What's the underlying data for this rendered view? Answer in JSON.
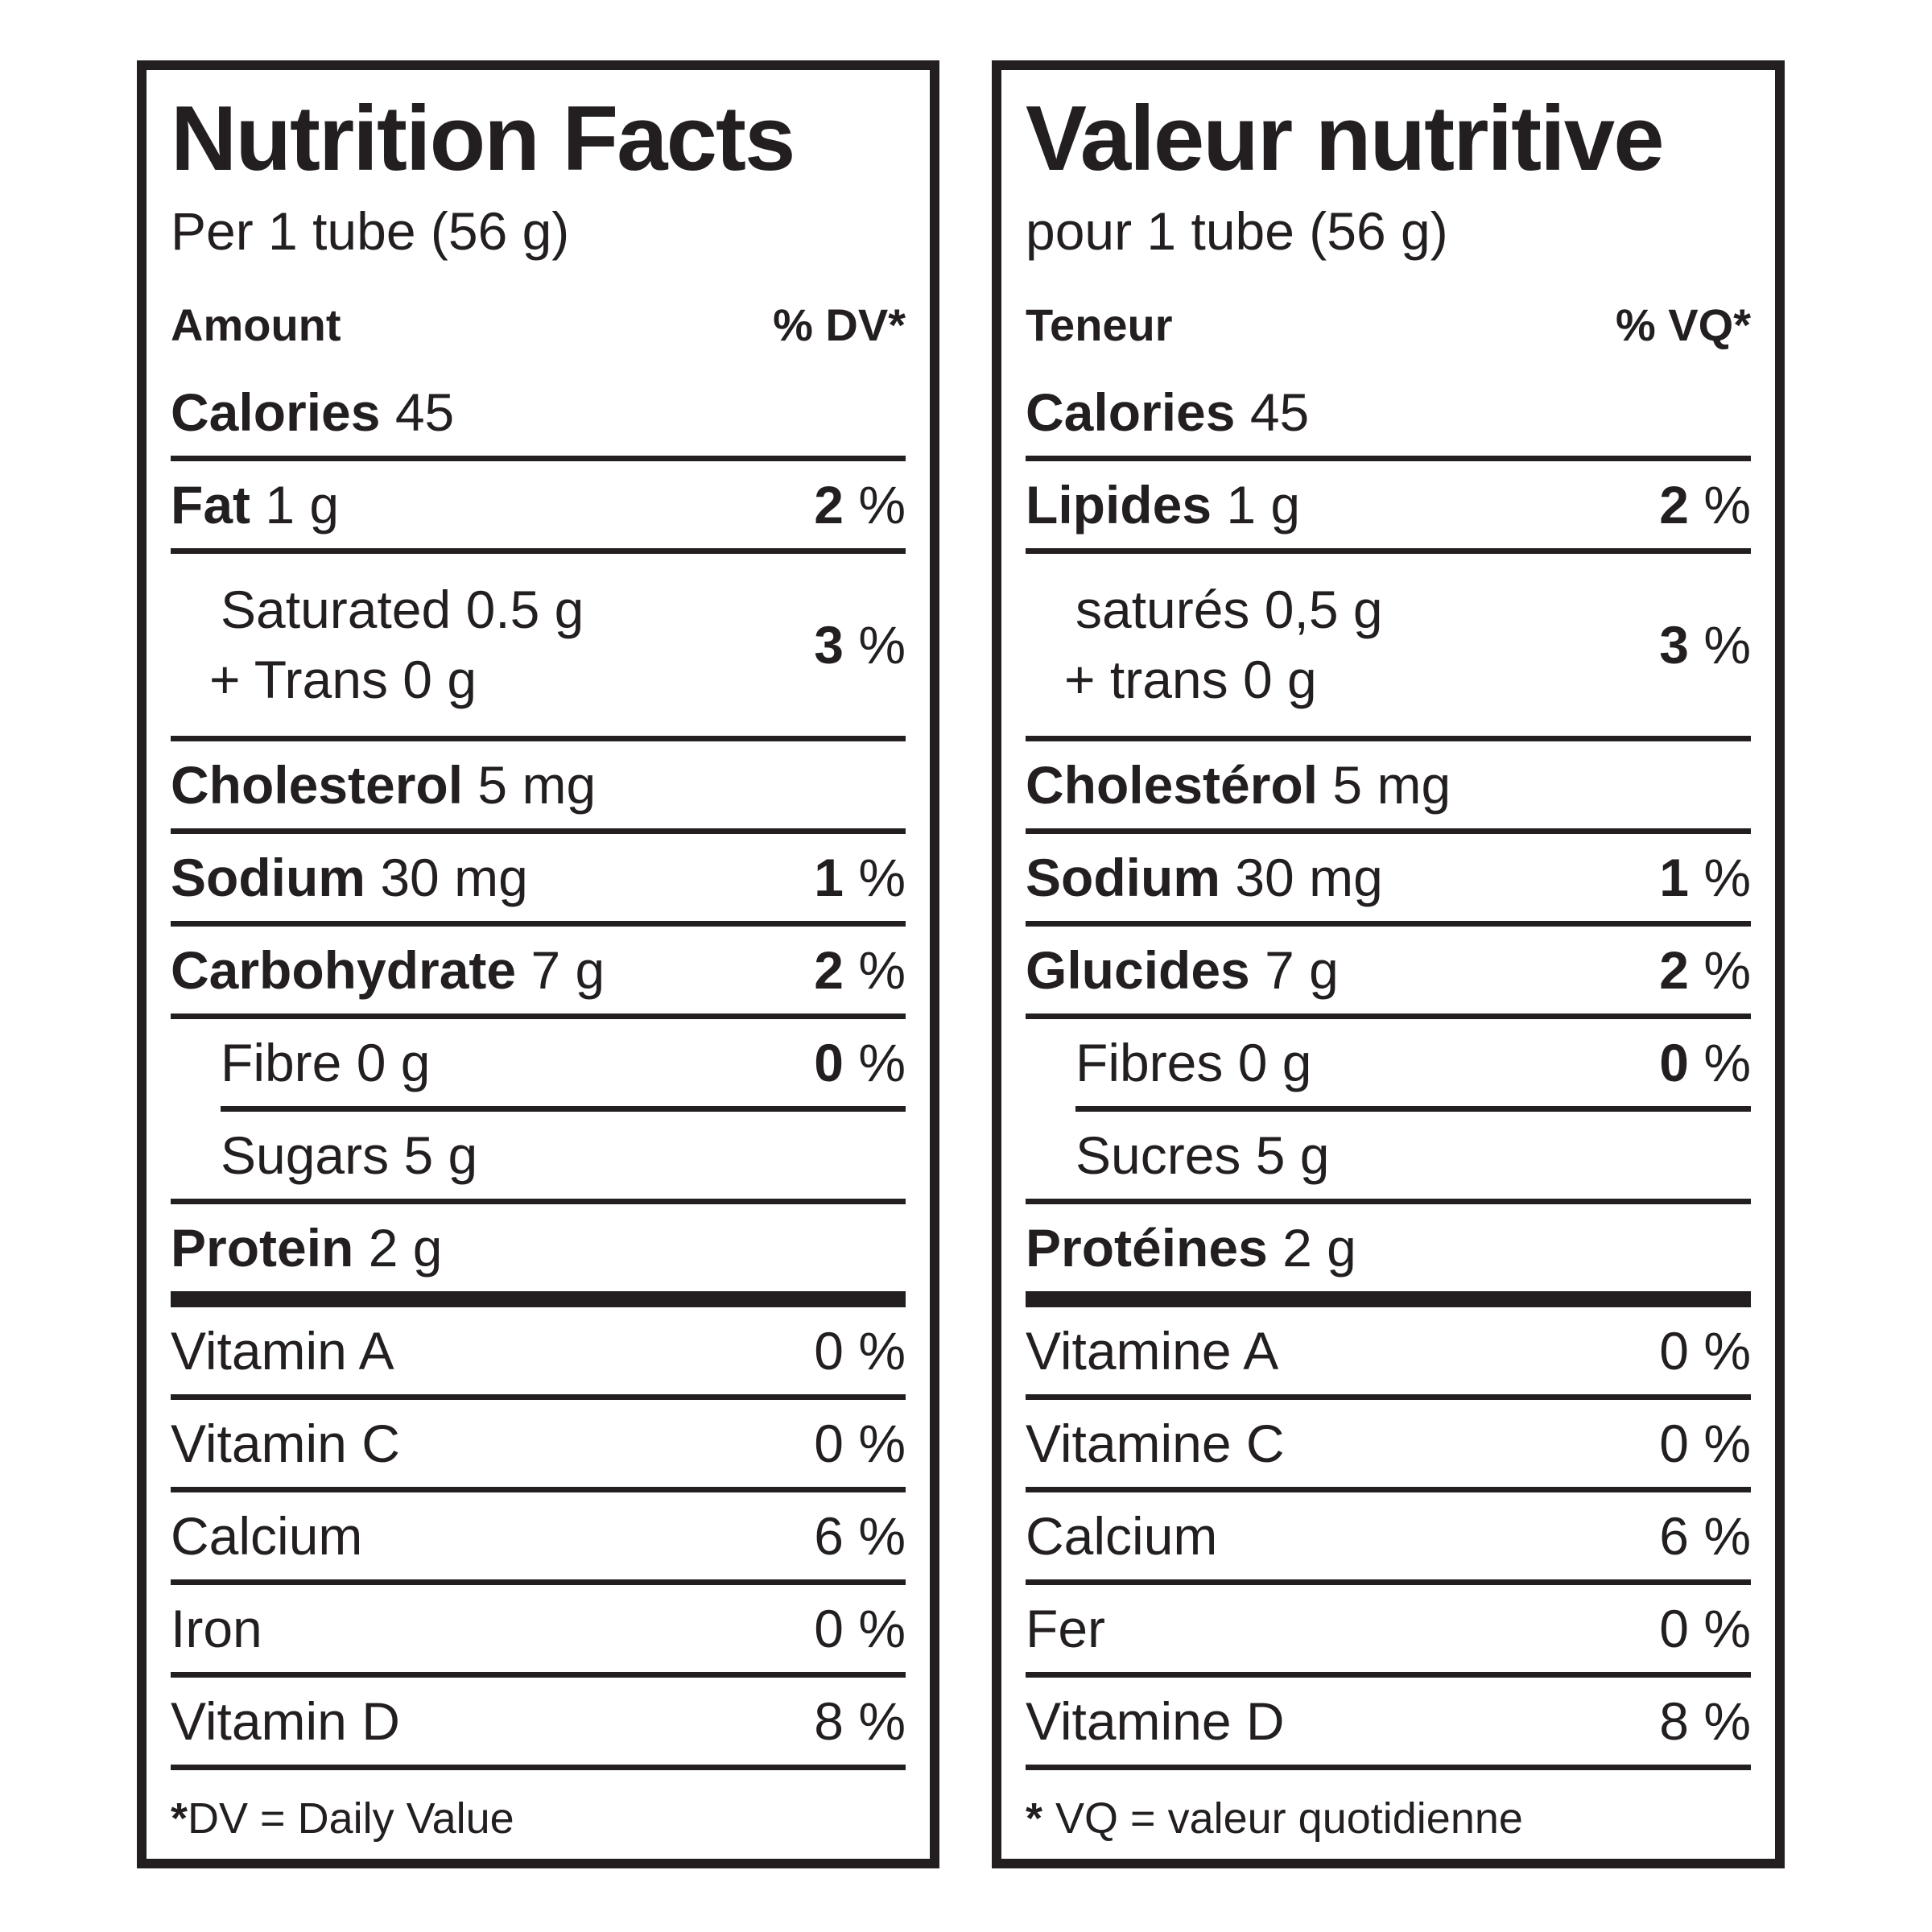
{
  "ink": "#231f20",
  "background": "#ffffff",
  "panels": [
    {
      "lang": "en",
      "title": "Nutrition Facts",
      "serving": "Per 1 tube (56 g)",
      "col_amount": "Amount",
      "col_dv": "% DV*",
      "rows": [
        {
          "key": "calories",
          "div": "none",
          "bold": true,
          "indent": false,
          "label": "Calories",
          "amount": "45"
        },
        {
          "key": "fat",
          "div": "thin",
          "bold": true,
          "indent": false,
          "label": "Fat",
          "amount": "1 g",
          "pct": {
            "num": "2",
            "sign": "%",
            "bold": true
          }
        },
        {
          "key": "saturated-trans",
          "div": "thin",
          "bold": false,
          "indent": true,
          "lines": [
            {
              "label": "Saturated",
              "amount": "0.5 g"
            },
            {
              "label": "+ Trans",
              "amount": "0 g"
            }
          ],
          "pct": {
            "num": "3",
            "sign": "%",
            "bold": true
          }
        },
        {
          "key": "cholesterol",
          "div": "thin",
          "bold": true,
          "indent": false,
          "label": "Cholesterol",
          "amount": "5 mg"
        },
        {
          "key": "sodium",
          "div": "thin",
          "bold": true,
          "indent": false,
          "label": "Sodium",
          "amount": "30 mg",
          "pct": {
            "num": "1",
            "sign": "%",
            "bold": true
          }
        },
        {
          "key": "carbohydrate",
          "div": "thin",
          "bold": true,
          "indent": false,
          "label": "Carbohydrate",
          "amount": "7 g",
          "pct": {
            "num": "2",
            "sign": "%",
            "bold": true
          }
        },
        {
          "key": "fibre",
          "div": "thin",
          "bold": false,
          "indent": true,
          "label": "Fibre",
          "amount": "0 g",
          "pct": {
            "num": "0",
            "sign": "%",
            "bold": true
          }
        },
        {
          "key": "sugars",
          "div": "indent",
          "bold": false,
          "indent": true,
          "label": "Sugars",
          "amount": "5 g"
        },
        {
          "key": "protein",
          "div": "thin",
          "bold": true,
          "indent": false,
          "label": "Protein",
          "amount": "2 g"
        },
        {
          "key": "vitamin-a",
          "div": "bar",
          "bold": false,
          "indent": false,
          "label": "Vitamin A",
          "pct": {
            "num": "0",
            "sign": "%",
            "bold": false
          }
        },
        {
          "key": "vitamin-c",
          "div": "thin",
          "bold": false,
          "indent": false,
          "label": "Vitamin C",
          "pct": {
            "num": "0",
            "sign": "%",
            "bold": false
          }
        },
        {
          "key": "calcium",
          "div": "thin",
          "bold": false,
          "indent": false,
          "label": "Calcium",
          "pct": {
            "num": "6",
            "sign": "%",
            "bold": false
          }
        },
        {
          "key": "iron",
          "div": "thin",
          "bold": false,
          "indent": false,
          "label": "Iron",
          "pct": {
            "num": "0",
            "sign": "%",
            "bold": false
          }
        },
        {
          "key": "vitamin-d",
          "div": "thin",
          "bold": false,
          "indent": false,
          "label": "Vitamin D",
          "pct": {
            "num": "8",
            "sign": "%",
            "bold": false
          }
        }
      ],
      "footnote": {
        "star": "*",
        "text": "DV = Daily Value"
      }
    },
    {
      "lang": "fr",
      "title": "Valeur nutritive",
      "serving": "pour 1 tube (56 g)",
      "col_amount": "Teneur",
      "col_dv": "% VQ*",
      "rows": [
        {
          "key": "calories",
          "div": "none",
          "bold": true,
          "indent": false,
          "label": "Calories",
          "amount": "45"
        },
        {
          "key": "lipides",
          "div": "thin",
          "bold": true,
          "indent": false,
          "label": "Lipides",
          "amount": "1 g",
          "pct": {
            "num": "2",
            "sign": "%",
            "bold": true
          }
        },
        {
          "key": "satures-trans",
          "div": "thin",
          "bold": false,
          "indent": true,
          "lines": [
            {
              "label": "saturés",
              "amount": "0,5 g"
            },
            {
              "label": "+ trans",
              "amount": "0 g"
            }
          ],
          "pct": {
            "num": "3",
            "sign": "%",
            "bold": true
          }
        },
        {
          "key": "cholesterol",
          "div": "thin",
          "bold": true,
          "indent": false,
          "label": "Cholestérol",
          "amount": "5 mg"
        },
        {
          "key": "sodium",
          "div": "thin",
          "bold": true,
          "indent": false,
          "label": "Sodium",
          "amount": "30 mg",
          "pct": {
            "num": "1",
            "sign": "%",
            "bold": true
          }
        },
        {
          "key": "glucides",
          "div": "thin",
          "bold": true,
          "indent": false,
          "label": "Glucides",
          "amount": "7 g",
          "pct": {
            "num": "2",
            "sign": "%",
            "bold": true
          }
        },
        {
          "key": "fibres",
          "div": "thin",
          "bold": false,
          "indent": true,
          "label": "Fibres",
          "amount": "0 g",
          "pct": {
            "num": "0",
            "sign": "%",
            "bold": true
          }
        },
        {
          "key": "sucres",
          "div": "indent",
          "bold": false,
          "indent": true,
          "label": "Sucres",
          "amount": "5 g"
        },
        {
          "key": "proteines",
          "div": "thin",
          "bold": true,
          "indent": false,
          "label": "Protéines",
          "amount": "2 g"
        },
        {
          "key": "vitamine-a",
          "div": "bar",
          "bold": false,
          "indent": false,
          "label": "Vitamine A",
          "pct": {
            "num": "0",
            "sign": "%",
            "bold": false
          }
        },
        {
          "key": "vitamine-c",
          "div": "thin",
          "bold": false,
          "indent": false,
          "label": "Vitamine C",
          "pct": {
            "num": "0",
            "sign": "%",
            "bold": false
          }
        },
        {
          "key": "calcium",
          "div": "thin",
          "bold": false,
          "indent": false,
          "label": "Calcium",
          "pct": {
            "num": "6",
            "sign": "%",
            "bold": false
          }
        },
        {
          "key": "fer",
          "div": "thin",
          "bold": false,
          "indent": false,
          "label": "Fer",
          "pct": {
            "num": "0",
            "sign": "%",
            "bold": false
          }
        },
        {
          "key": "vitamine-d",
          "div": "thin",
          "bold": false,
          "indent": false,
          "label": "Vitamine D",
          "pct": {
            "num": "8",
            "sign": "%",
            "bold": false
          }
        }
      ],
      "footnote": {
        "star": "*",
        "text": "VQ = valeur quotidienne"
      }
    }
  ]
}
